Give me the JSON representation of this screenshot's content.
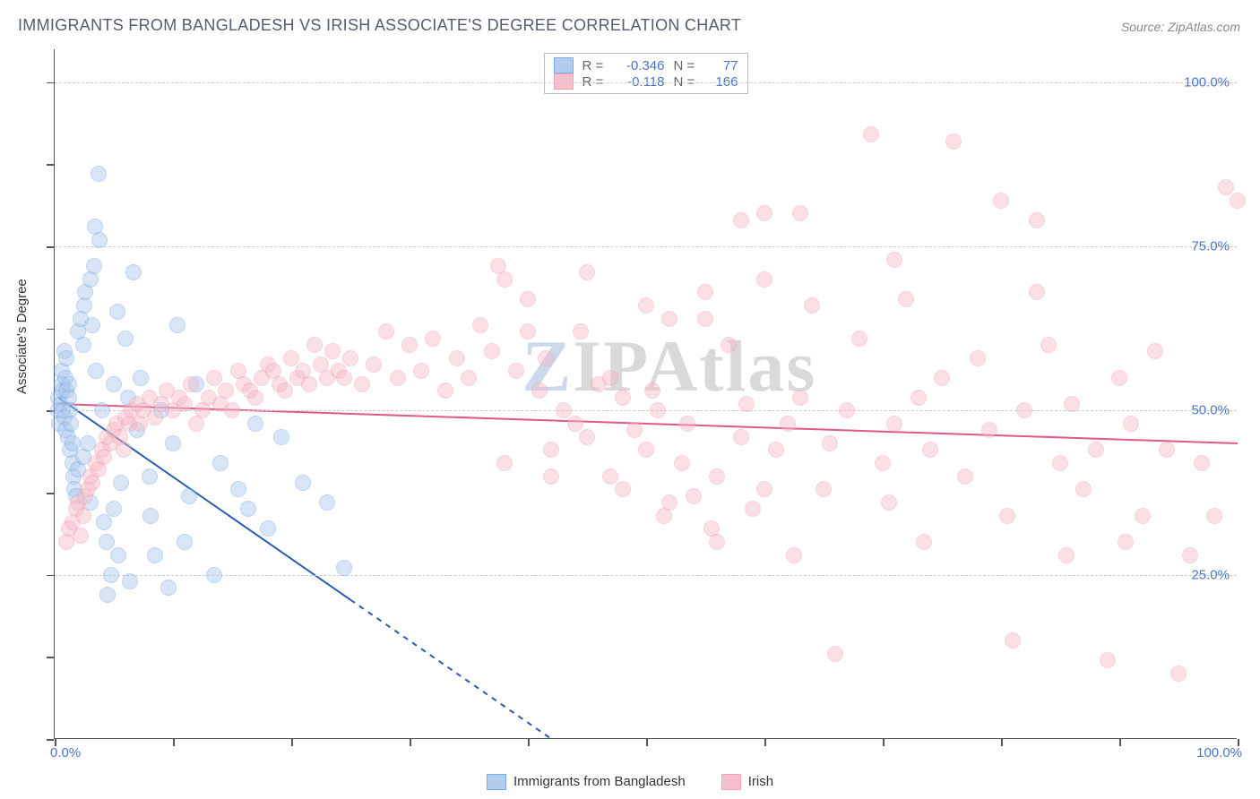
{
  "title": "IMMIGRANTS FROM BANGLADESH VS IRISH ASSOCIATE'S DEGREE CORRELATION CHART",
  "source_label": "Source: ",
  "source_name": "ZipAtlas.com",
  "y_axis_title": "Associate's Degree",
  "watermark": {
    "z": "Z",
    "rest": "IPAtlas"
  },
  "plot": {
    "type": "scatter",
    "x_min": 0,
    "x_max": 100,
    "y_min": 0,
    "y_max": 105,
    "x_min_label": "0.0%",
    "x_max_label": "100.0%",
    "y_grid": [
      {
        "v": 25,
        "label": "25.0%"
      },
      {
        "v": 50,
        "label": "50.0%"
      },
      {
        "v": 75,
        "label": "75.0%"
      },
      {
        "v": 100,
        "label": "100.0%"
      }
    ],
    "x_tick_step": 10,
    "y_tick_step": 12.5,
    "background_color": "#ffffff",
    "grid_color": "#cccccc",
    "marker_radius": 9,
    "marker_border_width": 1.5,
    "series": [
      {
        "id": "bangladesh",
        "name": "Immigrants from Bangladesh",
        "fill": "#a9c7ec",
        "fill_opacity": 0.45,
        "stroke": "#6fa3e0",
        "R_label": "R =",
        "R": "-0.346",
        "N_label": "N =",
        "N": "77",
        "trend": {
          "x1": 0.3,
          "y1": 52,
          "x2": 42,
          "y2": 0,
          "solid_x_end": 25,
          "color": "#2a5db0",
          "width": 2
        },
        "points": [
          [
            0.3,
            52
          ],
          [
            0.3,
            50
          ],
          [
            0.4,
            48
          ],
          [
            0.5,
            51
          ],
          [
            0.6,
            56
          ],
          [
            0.6,
            54
          ],
          [
            0.7,
            53
          ],
          [
            0.7,
            50
          ],
          [
            0.8,
            49
          ],
          [
            0.8,
            59
          ],
          [
            0.9,
            47
          ],
          [
            0.9,
            55
          ],
          [
            1.0,
            53
          ],
          [
            1.0,
            58
          ],
          [
            1.1,
            46
          ],
          [
            1.2,
            52
          ],
          [
            1.2,
            54
          ],
          [
            1.3,
            44
          ],
          [
            1.3,
            50
          ],
          [
            1.4,
            48
          ],
          [
            1.5,
            45
          ],
          [
            1.5,
            42
          ],
          [
            1.6,
            40
          ],
          [
            1.7,
            38
          ],
          [
            1.8,
            37
          ],
          [
            2.0,
            41
          ],
          [
            2.0,
            62
          ],
          [
            2.2,
            64
          ],
          [
            2.4,
            60
          ],
          [
            2.4,
            43
          ],
          [
            2.5,
            66
          ],
          [
            2.6,
            68
          ],
          [
            2.8,
            45
          ],
          [
            3.0,
            36
          ],
          [
            3.0,
            70
          ],
          [
            3.2,
            63
          ],
          [
            3.3,
            72
          ],
          [
            3.4,
            78
          ],
          [
            3.5,
            56
          ],
          [
            3.7,
            86
          ],
          [
            3.8,
            76
          ],
          [
            4.0,
            50
          ],
          [
            4.2,
            33
          ],
          [
            4.4,
            30
          ],
          [
            4.5,
            22
          ],
          [
            4.8,
            25
          ],
          [
            5.0,
            54
          ],
          [
            5.0,
            35
          ],
          [
            5.3,
            65
          ],
          [
            5.4,
            28
          ],
          [
            5.6,
            39
          ],
          [
            6.0,
            61
          ],
          [
            6.2,
            52
          ],
          [
            6.4,
            24
          ],
          [
            6.7,
            71
          ],
          [
            7.0,
            47
          ],
          [
            7.3,
            55
          ],
          [
            8.0,
            40
          ],
          [
            8.1,
            34
          ],
          [
            8.5,
            28
          ],
          [
            9.0,
            50
          ],
          [
            9.6,
            23
          ],
          [
            10.0,
            45
          ],
          [
            10.4,
            63
          ],
          [
            11.0,
            30
          ],
          [
            11.4,
            37
          ],
          [
            12.0,
            54
          ],
          [
            13.5,
            25
          ],
          [
            14.0,
            42
          ],
          [
            15.5,
            38
          ],
          [
            16.4,
            35
          ],
          [
            17.0,
            48
          ],
          [
            18.0,
            32
          ],
          [
            19.2,
            46
          ],
          [
            21.0,
            39
          ],
          [
            23.0,
            36
          ],
          [
            24.5,
            26
          ]
        ]
      },
      {
        "id": "irish",
        "name": "Irish",
        "fill": "#f5b9c6",
        "fill_opacity": 0.45,
        "stroke": "#ef9cb0",
        "R_label": "R =",
        "R": "-0.118",
        "N_label": "N =",
        "N": "166",
        "trend": {
          "x1": 0.3,
          "y1": 51,
          "x2": 100,
          "y2": 45,
          "solid_x_end": 100,
          "color": "#e05a82",
          "width": 2
        },
        "points": [
          [
            1.0,
            30
          ],
          [
            1.2,
            32
          ],
          [
            1.5,
            33
          ],
          [
            1.8,
            35
          ],
          [
            2.0,
            36
          ],
          [
            2.2,
            31
          ],
          [
            2.4,
            34
          ],
          [
            2.6,
            37
          ],
          [
            2.8,
            38
          ],
          [
            3.0,
            40
          ],
          [
            3.2,
            39
          ],
          [
            3.5,
            42
          ],
          [
            3.7,
            41
          ],
          [
            4.0,
            44
          ],
          [
            4.2,
            43
          ],
          [
            4.4,
            46
          ],
          [
            4.7,
            45
          ],
          [
            5.0,
            47
          ],
          [
            5.2,
            48
          ],
          [
            5.5,
            46
          ],
          [
            5.8,
            44
          ],
          [
            6.0,
            49
          ],
          [
            6.3,
            48
          ],
          [
            6.5,
            50
          ],
          [
            7.0,
            51
          ],
          [
            7.2,
            48
          ],
          [
            7.5,
            50
          ],
          [
            8.0,
            52
          ],
          [
            8.5,
            49
          ],
          [
            9.0,
            51
          ],
          [
            9.5,
            53
          ],
          [
            10.0,
            50
          ],
          [
            10.5,
            52
          ],
          [
            11.0,
            51
          ],
          [
            11.5,
            54
          ],
          [
            12.0,
            48
          ],
          [
            12.5,
            50
          ],
          [
            13.0,
            52
          ],
          [
            13.5,
            55
          ],
          [
            14.0,
            51
          ],
          [
            14.5,
            53
          ],
          [
            15.0,
            50
          ],
          [
            15.5,
            56
          ],
          [
            16.0,
            54
          ],
          [
            16.5,
            53
          ],
          [
            17.0,
            52
          ],
          [
            17.5,
            55
          ],
          [
            18.0,
            57
          ],
          [
            18.5,
            56
          ],
          [
            19.0,
            54
          ],
          [
            19.5,
            53
          ],
          [
            20.0,
            58
          ],
          [
            20.5,
            55
          ],
          [
            21.0,
            56
          ],
          [
            21.5,
            54
          ],
          [
            22.0,
            60
          ],
          [
            22.5,
            57
          ],
          [
            23.0,
            55
          ],
          [
            23.5,
            59
          ],
          [
            24.0,
            56
          ],
          [
            24.5,
            55
          ],
          [
            25.0,
            58
          ],
          [
            26.0,
            54
          ],
          [
            27.0,
            57
          ],
          [
            28.0,
            62
          ],
          [
            29.0,
            55
          ],
          [
            30.0,
            60
          ],
          [
            31.0,
            56
          ],
          [
            32.0,
            61
          ],
          [
            33.0,
            53
          ],
          [
            34.0,
            58
          ],
          [
            35.0,
            55
          ],
          [
            36.0,
            63
          ],
          [
            37.0,
            59
          ],
          [
            37.5,
            72
          ],
          [
            38.0,
            70
          ],
          [
            39.0,
            56
          ],
          [
            40.0,
            62
          ],
          [
            41.0,
            53
          ],
          [
            41.5,
            58
          ],
          [
            42.0,
            44
          ],
          [
            43.0,
            50
          ],
          [
            44.0,
            48
          ],
          [
            44.5,
            62
          ],
          [
            45.0,
            46
          ],
          [
            46.0,
            54
          ],
          [
            47.0,
            40
          ],
          [
            48.0,
            52
          ],
          [
            49.0,
            47
          ],
          [
            50.0,
            44
          ],
          [
            50.5,
            53
          ],
          [
            51.0,
            50
          ],
          [
            51.5,
            34
          ],
          [
            52.0,
            64
          ],
          [
            53.0,
            42
          ],
          [
            53.5,
            48
          ],
          [
            54.0,
            37
          ],
          [
            55.0,
            68
          ],
          [
            55.5,
            32
          ],
          [
            56.0,
            30
          ],
          [
            57.0,
            60
          ],
          [
            58.0,
            46
          ],
          [
            58.5,
            51
          ],
          [
            59.0,
            35
          ],
          [
            60.0,
            80
          ],
          [
            61.0,
            44
          ],
          [
            62.0,
            48
          ],
          [
            62.5,
            28
          ],
          [
            63.0,
            52
          ],
          [
            64.0,
            66
          ],
          [
            65.0,
            38
          ],
          [
            65.5,
            45
          ],
          [
            66.0,
            13
          ],
          [
            67.0,
            50
          ],
          [
            68.0,
            61
          ],
          [
            69.0,
            92
          ],
          [
            70.0,
            42
          ],
          [
            70.5,
            36
          ],
          [
            71.0,
            48
          ],
          [
            72.0,
            67
          ],
          [
            73.0,
            52
          ],
          [
            73.5,
            30
          ],
          [
            74.0,
            44
          ],
          [
            75.0,
            55
          ],
          [
            76.0,
            91
          ],
          [
            77.0,
            40
          ],
          [
            78.0,
            58
          ],
          [
            79.0,
            47
          ],
          [
            80.0,
            82
          ],
          [
            80.5,
            34
          ],
          [
            81.0,
            15
          ],
          [
            82.0,
            50
          ],
          [
            83.0,
            68
          ],
          [
            84.0,
            60
          ],
          [
            85.0,
            42
          ],
          [
            85.5,
            28
          ],
          [
            86.0,
            51
          ],
          [
            87.0,
            38
          ],
          [
            88.0,
            44
          ],
          [
            89.0,
            12
          ],
          [
            90.0,
            55
          ],
          [
            90.5,
            30
          ],
          [
            91.0,
            48
          ],
          [
            92.0,
            34
          ],
          [
            93.0,
            59
          ],
          [
            94.0,
            44
          ],
          [
            95.0,
            10
          ],
          [
            96.0,
            28
          ],
          [
            97.0,
            42
          ],
          [
            98.0,
            34
          ],
          [
            99.0,
            84
          ],
          [
            100.0,
            82
          ],
          [
            58,
            79
          ],
          [
            63,
            80
          ],
          [
            71,
            73
          ],
          [
            83,
            79
          ],
          [
            40,
            67
          ],
          [
            45,
            71
          ],
          [
            50,
            66
          ],
          [
            55,
            64
          ],
          [
            60,
            70
          ],
          [
            47,
            55
          ],
          [
            38,
            42
          ],
          [
            42,
            40
          ],
          [
            48,
            38
          ],
          [
            52,
            36
          ],
          [
            56,
            40
          ],
          [
            60,
            38
          ]
        ]
      }
    ]
  }
}
